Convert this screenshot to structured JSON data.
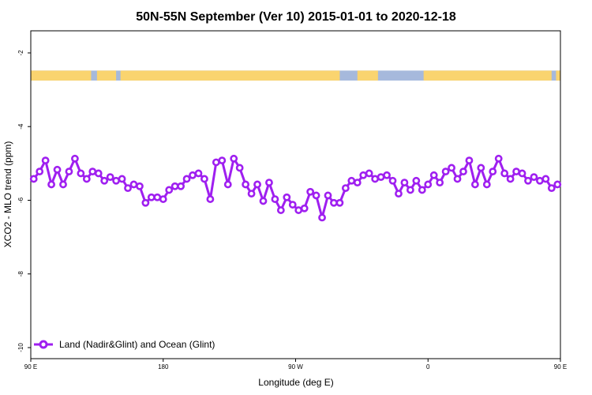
{
  "chart_data": {
    "type": "line",
    "title": "50N-55N September (Ver 10)   2015-01-01 to 2020-12-18",
    "xlabel": "Longitude (deg E)",
    "ylabel": "XCO2 - MLO trend (ppm)",
    "xlim": [
      90,
      450
    ],
    "ylim": [
      -10.3,
      -1.4
    ],
    "x_ticks": [
      {
        "value": 90,
        "label": "90 E"
      },
      {
        "value": 180,
        "label": "180"
      },
      {
        "value": 270,
        "label": "90 W"
      },
      {
        "value": 360,
        "label": "0"
      },
      {
        "value": 450,
        "label": "90 E"
      }
    ],
    "y_ticks": [
      {
        "value": -2,
        "label": "-2"
      },
      {
        "value": -4,
        "label": "-4"
      },
      {
        "value": -6,
        "label": "-6"
      },
      {
        "value": -8,
        "label": "-8"
      },
      {
        "value": -10,
        "label": "-10"
      }
    ],
    "landmask_band": {
      "y_range": [
        -2.75,
        -2.48
      ],
      "ocean_color": "#a6b9dc",
      "land_color": "#fad46f",
      "land_segments": [
        [
          90,
          131
        ],
        [
          135,
          148
        ],
        [
          151,
          300
        ],
        [
          312,
          326
        ],
        [
          357,
          444
        ],
        [
          447,
          450
        ]
      ]
    },
    "legend": "Land (Nadir&Glint) and Ocean (Glint)",
    "series": [
      {
        "name": "Land (Nadir&Glint) and Ocean (Glint)",
        "color": "#9f1ff0",
        "x": [
          92,
          96,
          100,
          104,
          108,
          112,
          116,
          120,
          124,
          128,
          132,
          136,
          140,
          144,
          148,
          152,
          156,
          160,
          164,
          168,
          172,
          176,
          180,
          184,
          188,
          192,
          196,
          200,
          204,
          208,
          212,
          216,
          220,
          224,
          228,
          232,
          236,
          240,
          244,
          248,
          252,
          256,
          260,
          264,
          268,
          272,
          276,
          280,
          284,
          288,
          292,
          296,
          300,
          304,
          308,
          312,
          316,
          320,
          324,
          328,
          332,
          336,
          340,
          344,
          348,
          352,
          356,
          360,
          364,
          368,
          372,
          376,
          380,
          384,
          388,
          392,
          396,
          400,
          404,
          408,
          412,
          416,
          420,
          424,
          428,
          432,
          436,
          440,
          444,
          448
        ],
        "y": [
          -5.42,
          -5.22,
          -4.92,
          -5.57,
          -5.17,
          -5.57,
          -5.22,
          -4.87,
          -5.27,
          -5.42,
          -5.22,
          -5.27,
          -5.47,
          -5.37,
          -5.47,
          -5.42,
          -5.67,
          -5.57,
          -5.62,
          -6.07,
          -5.92,
          -5.92,
          -5.97,
          -5.72,
          -5.62,
          -5.62,
          -5.42,
          -5.32,
          -5.27,
          -5.42,
          -5.97,
          -4.97,
          -4.92,
          -5.57,
          -4.87,
          -5.12,
          -5.57,
          -5.82,
          -5.57,
          -6.02,
          -5.52,
          -5.97,
          -6.27,
          -5.92,
          -6.12,
          -6.27,
          -6.22,
          -5.77,
          -5.87,
          -6.47,
          -5.87,
          -6.07,
          -6.07,
          -5.67,
          -5.47,
          -5.52,
          -5.32,
          -5.27,
          -5.42,
          -5.37,
          -5.32,
          -5.47,
          -5.82,
          -5.52,
          -5.72,
          -5.47,
          -5.72,
          -5.57,
          -5.32,
          -5.52,
          -5.22,
          -5.12,
          -5.42,
          -5.22,
          -4.92,
          -5.57,
          -5.12,
          -5.57,
          -5.22,
          -4.87,
          -5.27,
          -5.42,
          -5.22,
          -5.27,
          -5.47,
          -5.37,
          -5.47,
          -5.42,
          -5.67,
          -5.57
        ]
      }
    ]
  }
}
